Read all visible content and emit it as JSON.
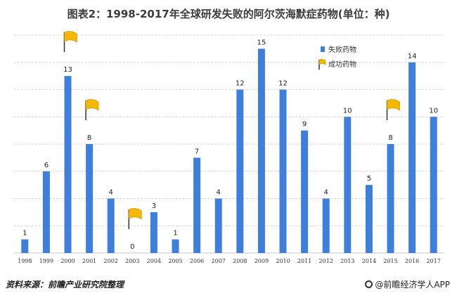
{
  "title": "图表2：1998-2017年全球研发失败的阿尔茨海默症药物(单位：种)",
  "source": "资料来源：前瞻产业研究院整理",
  "brand": "@前瞻经济学人APP",
  "colors": {
    "bar": "#3f7fdc",
    "flag": "#f5b800",
    "grid": "#c8c8c8"
  },
  "chart_data": {
    "type": "bar",
    "categories": [
      "1998",
      "1999",
      "2000",
      "2001",
      "2002",
      "2003",
      "2004",
      "2005",
      "2006",
      "2007",
      "2008",
      "2009",
      "2010",
      "2011",
      "2012",
      "2013",
      "2014",
      "2015",
      "2016",
      "2017"
    ],
    "series": [
      {
        "name": "失败药物",
        "values": [
          1,
          6,
          13,
          8,
          4,
          0,
          3,
          1,
          7,
          4,
          12,
          15,
          12,
          9,
          4,
          10,
          5,
          8,
          14,
          10
        ]
      }
    ],
    "markers": {
      "name": "成功药物",
      "categories": [
        "2000",
        "2001",
        "2003",
        "2015"
      ]
    },
    "ylim": [
      0,
      16
    ],
    "grid": true,
    "legend": "top-right"
  }
}
